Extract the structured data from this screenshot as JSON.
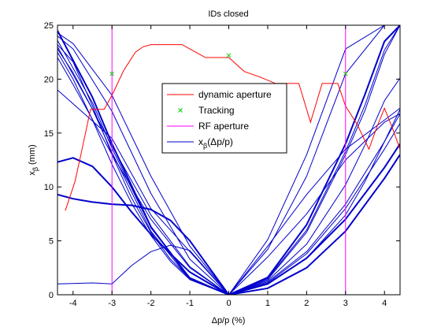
{
  "chart_data": {
    "type": "line",
    "title": "IDs closed",
    "xlabel": "Δp/p (%)",
    "ylabel": "x",
    "ylabel_sub": "β",
    "ylabel_unit": "(mm)",
    "xlim": [
      -4.4,
      4.4
    ],
    "ylim": [
      0,
      25
    ],
    "xticks": [
      -4,
      -3,
      -2,
      -1,
      0,
      1,
      2,
      3,
      4
    ],
    "yticks": [
      0,
      5,
      10,
      15,
      20,
      25
    ],
    "grid": false,
    "legend_position": "upper-center",
    "legend": [
      {
        "label": "dynamic aperture",
        "style": "line",
        "color": "#ff0000"
      },
      {
        "label": "Tracking",
        "style": "x-marker",
        "color": "#00cc00"
      },
      {
        "label": "RF aperture",
        "style": "line",
        "color": "#ff00ff"
      },
      {
        "label": "x",
        "sub": "β",
        "suffix": "(Δp/p)",
        "style": "line",
        "color": "#0000cc"
      }
    ],
    "dynamic_aperture": {
      "color": "#ff0000",
      "x": [
        -4.2,
        -3.95,
        -3.8,
        -3.55,
        -3.2,
        -3.0,
        -2.7,
        -2.4,
        -2.2,
        -2.0,
        -1.6,
        -1.2,
        -0.6,
        0.0,
        0.4,
        0.8,
        1.2,
        1.6,
        1.8,
        2.1,
        2.4,
        2.8,
        3.0,
        3.3,
        3.6,
        3.8,
        4.0,
        4.2,
        4.4
      ],
      "y": [
        7.8,
        10.5,
        13.0,
        17.2,
        17.2,
        18.5,
        20.8,
        22.5,
        23.0,
        23.2,
        23.2,
        23.2,
        22.0,
        22.0,
        20.7,
        20.2,
        19.6,
        19.6,
        19.6,
        16.0,
        19.6,
        19.6,
        17.5,
        15.8,
        13.5,
        15.5,
        17.3,
        15.5,
        13.5
      ]
    },
    "tracking": {
      "color": "#00cc00",
      "points": [
        {
          "x": -3.0,
          "y": 20.5
        },
        {
          "x": 0.0,
          "y": 22.2
        },
        {
          "x": 3.0,
          "y": 20.5
        }
      ]
    },
    "rf_aperture": {
      "color": "#ff00ff",
      "x": [
        -3.0,
        3.0
      ]
    },
    "x_beta": {
      "color": "#0000cc",
      "series": [
        {
          "width": 2.0,
          "x": [
            -4.4,
            -3.5,
            -3.0,
            -2.0,
            -1.0,
            0.0,
            1.0,
            2.0,
            3.0,
            3.5,
            4.0,
            4.4
          ],
          "y": [
            24.5,
            18.3,
            14.0,
            6.3,
            1.5,
            0.0,
            1.6,
            6.5,
            14.0,
            18.6,
            23.5,
            25.0
          ]
        },
        {
          "width": 1.0,
          "x": [
            -4.4,
            -3.5,
            -3.0,
            -2.0,
            -1.0,
            0.0,
            1.0,
            2.0,
            3.0,
            3.5,
            4.0,
            4.4
          ],
          "y": [
            23.6,
            17.8,
            13.6,
            6.2,
            1.6,
            0.0,
            1.5,
            6.0,
            13.3,
            17.6,
            22.7,
            25.0
          ]
        },
        {
          "width": 1.0,
          "x": [
            -4.4,
            -3.5,
            -3.0,
            -2.0,
            -1.0,
            0.0,
            1.0,
            2.0,
            3.0,
            3.5,
            4.0,
            4.4
          ],
          "y": [
            23.0,
            17.2,
            13.2,
            5.9,
            1.4,
            0.0,
            1.4,
            5.8,
            13.0,
            17.1,
            22.3,
            25.0
          ]
        },
        {
          "width": 1.0,
          "x": [
            -4.4,
            -3.0,
            -2.0,
            -1.0,
            0.0,
            1.0,
            2.0,
            3.0,
            4.0,
            4.4
          ],
          "y": [
            19.0,
            14.5,
            8.0,
            4.0,
            0.0,
            3.5,
            7.5,
            12.5,
            16.0,
            16.8
          ]
        },
        {
          "width": 1.0,
          "x": [
            -4.4,
            -3.5,
            -3.0,
            -2.5,
            -2.0,
            -1.5,
            -1.0,
            0.0,
            1.0,
            2.0,
            3.0,
            4.0,
            4.4
          ],
          "y": [
            1.0,
            1.1,
            1.0,
            2.7,
            4.0,
            4.6,
            4.1,
            0.0,
            4.5,
            9.3,
            13.5,
            16.2,
            17.3
          ]
        },
        {
          "width": 2.0,
          "x": [
            -4.4,
            -4.0,
            -3.5,
            -3.0,
            -2.5,
            -2.0,
            -1.5,
            -1.0,
            0.0,
            1.0,
            2.0,
            3.0,
            4.0,
            4.4
          ],
          "y": [
            12.3,
            12.7,
            11.9,
            10.0,
            7.7,
            5.6,
            3.8,
            2.1,
            0.0,
            0.6,
            2.5,
            5.9,
            10.8,
            13.0
          ]
        },
        {
          "width": 2.0,
          "x": [
            -4.4,
            -4.0,
            -3.5,
            -3.0,
            -2.5,
            -2.0,
            -1.5,
            -1.0,
            0.0,
            1.0,
            2.0,
            3.0,
            4.0,
            4.4
          ],
          "y": [
            9.3,
            8.9,
            8.6,
            8.4,
            8.3,
            7.9,
            6.9,
            5.0,
            0.0,
            1.0,
            3.4,
            7.0,
            11.8,
            14.0
          ]
        },
        {
          "width": 1.0,
          "x": [
            -4.4,
            -4.0,
            -3.5,
            -3.0,
            -2.5,
            -2.0,
            -1.5,
            -1.0,
            0.0,
            1.0,
            2.0,
            3.0,
            4.0,
            4.4
          ],
          "y": [
            22.5,
            20.0,
            16.2,
            12.1,
            8.5,
            5.5,
            3.1,
            1.4,
            0.0,
            1.1,
            3.8,
            8.0,
            13.5,
            15.9
          ]
        },
        {
          "width": 1.0,
          "x": [
            -4.4,
            -4.0,
            -3.5,
            -3.0,
            -2.5,
            -2.0,
            -1.5,
            -1.0,
            0.0,
            1.0,
            2.0,
            3.0,
            4.0,
            4.4
          ],
          "y": [
            23.2,
            21.6,
            17.5,
            13.0,
            9.0,
            5.8,
            3.3,
            1.5,
            0.0,
            1.2,
            4.0,
            8.4,
            14.2,
            16.8
          ]
        },
        {
          "width": 1.0,
          "x": [
            -4.4,
            -4.0,
            -3.0,
            -2.0,
            -1.0,
            0.0,
            1.0,
            2.0,
            3.0,
            4.0,
            4.4
          ],
          "y": [
            24.0,
            22.8,
            17.0,
            9.4,
            3.3,
            0.0,
            4.2,
            11.0,
            20.5,
            25.0,
            25.0
          ]
        },
        {
          "width": 1.0,
          "x": [
            -4.4,
            -4.0,
            -3.0,
            -2.0,
            -1.0,
            0.0,
            1.0,
            2.0,
            3.0,
            4.0,
            4.4
          ],
          "y": [
            24.3,
            23.3,
            18.5,
            11.0,
            4.5,
            0.0,
            5.1,
            13.0,
            22.8,
            25.0,
            25.0
          ]
        },
        {
          "width": 1.0,
          "x": [
            -4.4,
            -4.0,
            -3.0,
            -2.0,
            -1.0,
            0.0,
            1.0,
            2.0,
            3.0,
            3.5,
            4.0,
            4.4
          ],
          "y": [
            22.0,
            19.5,
            13.0,
            7.0,
            2.5,
            0.0,
            1.3,
            4.7,
            10.2,
            13.9,
            18.0,
            20.1
          ]
        },
        {
          "width": 1.0,
          "x": [
            -4.4,
            -4.0,
            -3.0,
            -2.0,
            -1.0,
            0.0,
            1.0,
            2.0,
            3.0,
            3.5,
            4.0,
            4.4
          ],
          "y": [
            22.8,
            20.6,
            13.8,
            7.4,
            2.6,
            0.0,
            1.0,
            3.4,
            7.4,
            10.5,
            14.2,
            17.2
          ]
        }
      ]
    }
  }
}
